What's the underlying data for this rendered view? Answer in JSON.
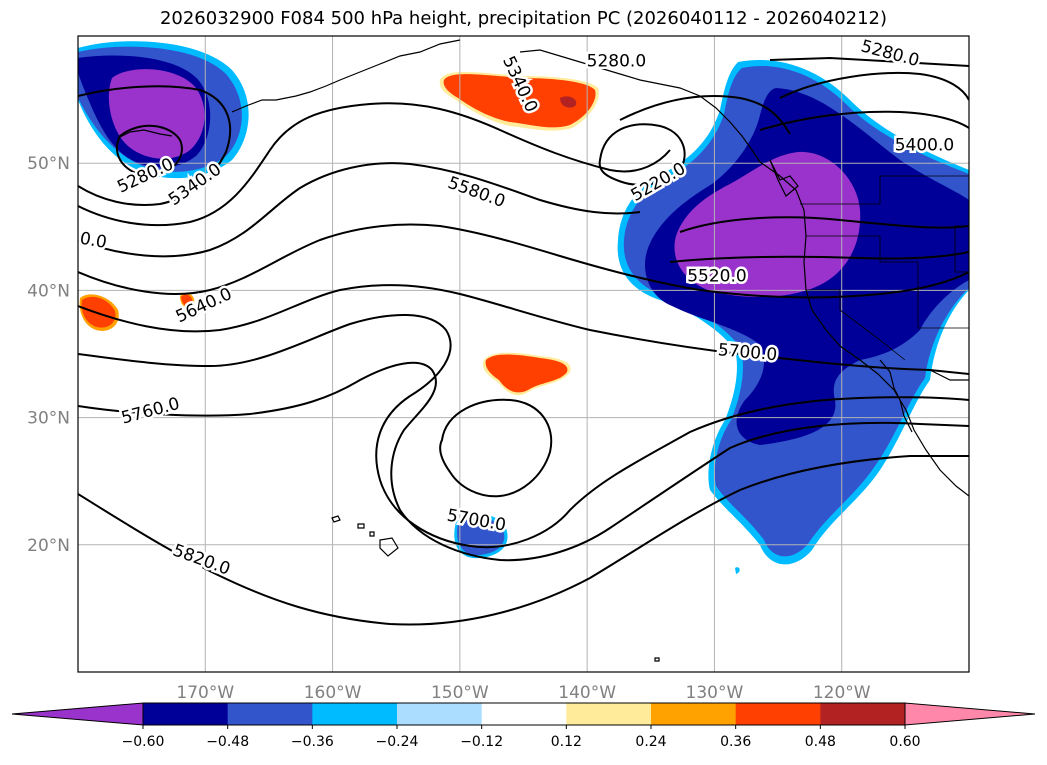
{
  "title": "2026032900 F084 500 hPa height, precipitation PC (2026040112 - 2026040212)",
  "chart_data": {
    "type": "map-contour",
    "title": "2026032900 F084 500 hPa height, precipitation PC (2026040112 - 2026040212)",
    "lon_range": [
      -180,
      -110
    ],
    "lat_range": [
      10,
      60
    ],
    "grid": true,
    "x_ticks": [
      {
        "value": -170,
        "label": "170°W"
      },
      {
        "value": -160,
        "label": "160°W"
      },
      {
        "value": -150,
        "label": "150°W"
      },
      {
        "value": -140,
        "label": "140°W"
      },
      {
        "value": -130,
        "label": "130°W"
      },
      {
        "value": -120,
        "label": "120°W"
      }
    ],
    "y_ticks": [
      {
        "value": 50,
        "label": "50°N"
      },
      {
        "value": 40,
        "label": "40°N"
      },
      {
        "value": 30,
        "label": "30°N"
      },
      {
        "value": 20,
        "label": "20°N"
      }
    ],
    "contour_labels": [
      {
        "text": "5280.0",
        "lon": -174.7,
        "lat": 49.0,
        "angle": -25
      },
      {
        "text": "5340.0",
        "lon": -170.8,
        "lat": 48.3,
        "angle": -35
      },
      {
        "text": "0.0",
        "lon": -178.8,
        "lat": 43.9,
        "angle": 10
      },
      {
        "text": "5640.0",
        "lon": -170.1,
        "lat": 38.8,
        "angle": -25
      },
      {
        "text": "5760.0",
        "lon": -174.3,
        "lat": 30.5,
        "angle": -15
      },
      {
        "text": "5820.0",
        "lon": -170.3,
        "lat": 18.8,
        "angle": 20
      },
      {
        "text": "5340.0",
        "lon": -145.3,
        "lat": 56.2,
        "angle": 65
      },
      {
        "text": "5580.0",
        "lon": -148.7,
        "lat": 47.7,
        "angle": 20
      },
      {
        "text": "5280.0",
        "lon": -137.7,
        "lat": 58.0,
        "angle": 0
      },
      {
        "text": "5220.0",
        "lon": -134.4,
        "lat": 48.5,
        "angle": -30
      },
      {
        "text": "5520.0",
        "lon": -129.8,
        "lat": 41.1,
        "angle": 0
      },
      {
        "text": "5700.0",
        "lon": -127.4,
        "lat": 35.1,
        "angle": 5
      },
      {
        "text": "5700.0",
        "lon": -148.7,
        "lat": 21.9,
        "angle": 10
      },
      {
        "text": "5280.0",
        "lon": -116.2,
        "lat": 58.6,
        "angle": 15
      },
      {
        "text": "5400.0",
        "lon": -113.5,
        "lat": 51.4,
        "angle": 0
      }
    ],
    "colorbar": {
      "extend": "both",
      "levels": [
        -0.6,
        -0.48,
        -0.36,
        -0.24,
        -0.12,
        0.12,
        0.24,
        0.36,
        0.48,
        0.6
      ],
      "tick_labels": [
        "−0.60",
        "−0.48",
        "−0.36",
        "−0.24",
        "−0.12",
        "0.12",
        "0.24",
        "0.36",
        "0.48",
        "0.60"
      ],
      "colors": [
        "#9933cc",
        "#000099",
        "#3355cc",
        "#00bbff",
        "#aaddff",
        "#ffffff",
        "#ffeb99",
        "#ffa200",
        "#ff4000",
        "#b22222",
        "#ff88aa"
      ]
    }
  }
}
